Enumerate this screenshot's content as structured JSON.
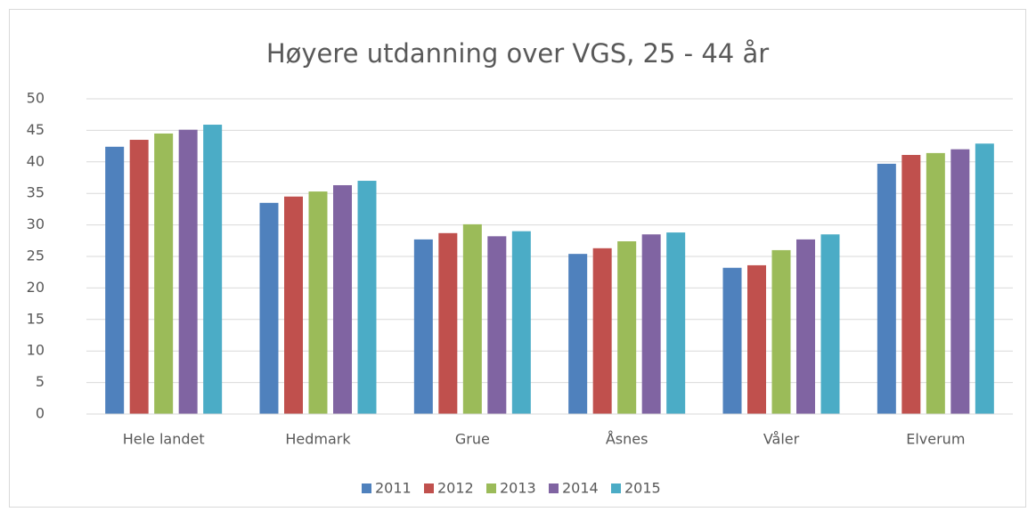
{
  "chart_data": {
    "type": "bar",
    "title": "Høyere utdanning over VGS, 25 - 44 år",
    "categories": [
      "Hele landet",
      "Hedmark",
      "Grue",
      "Åsnes",
      "Våler",
      "Elverum"
    ],
    "series": [
      {
        "name": "2011",
        "color": "#4f81bd",
        "values": [
          42.4,
          33.5,
          27.7,
          25.4,
          23.2,
          39.7
        ]
      },
      {
        "name": "2012",
        "color": "#c0504d",
        "values": [
          43.5,
          34.5,
          28.7,
          26.3,
          23.6,
          41.1
        ]
      },
      {
        "name": "2013",
        "color": "#9bbb59",
        "values": [
          44.5,
          35.3,
          30.1,
          27.4,
          26.0,
          41.4
        ]
      },
      {
        "name": "2014",
        "color": "#8064a2",
        "values": [
          45.1,
          36.3,
          28.2,
          28.5,
          27.7,
          42.0
        ]
      },
      {
        "name": "2015",
        "color": "#4bacc6",
        "values": [
          45.9,
          37.0,
          29.0,
          28.8,
          28.5,
          42.9
        ]
      }
    ],
    "ylim": [
      0,
      50
    ],
    "yticks": [
      0,
      5,
      10,
      15,
      20,
      25,
      30,
      35,
      40,
      45,
      50
    ],
    "grid": true,
    "legend": "bottom"
  }
}
